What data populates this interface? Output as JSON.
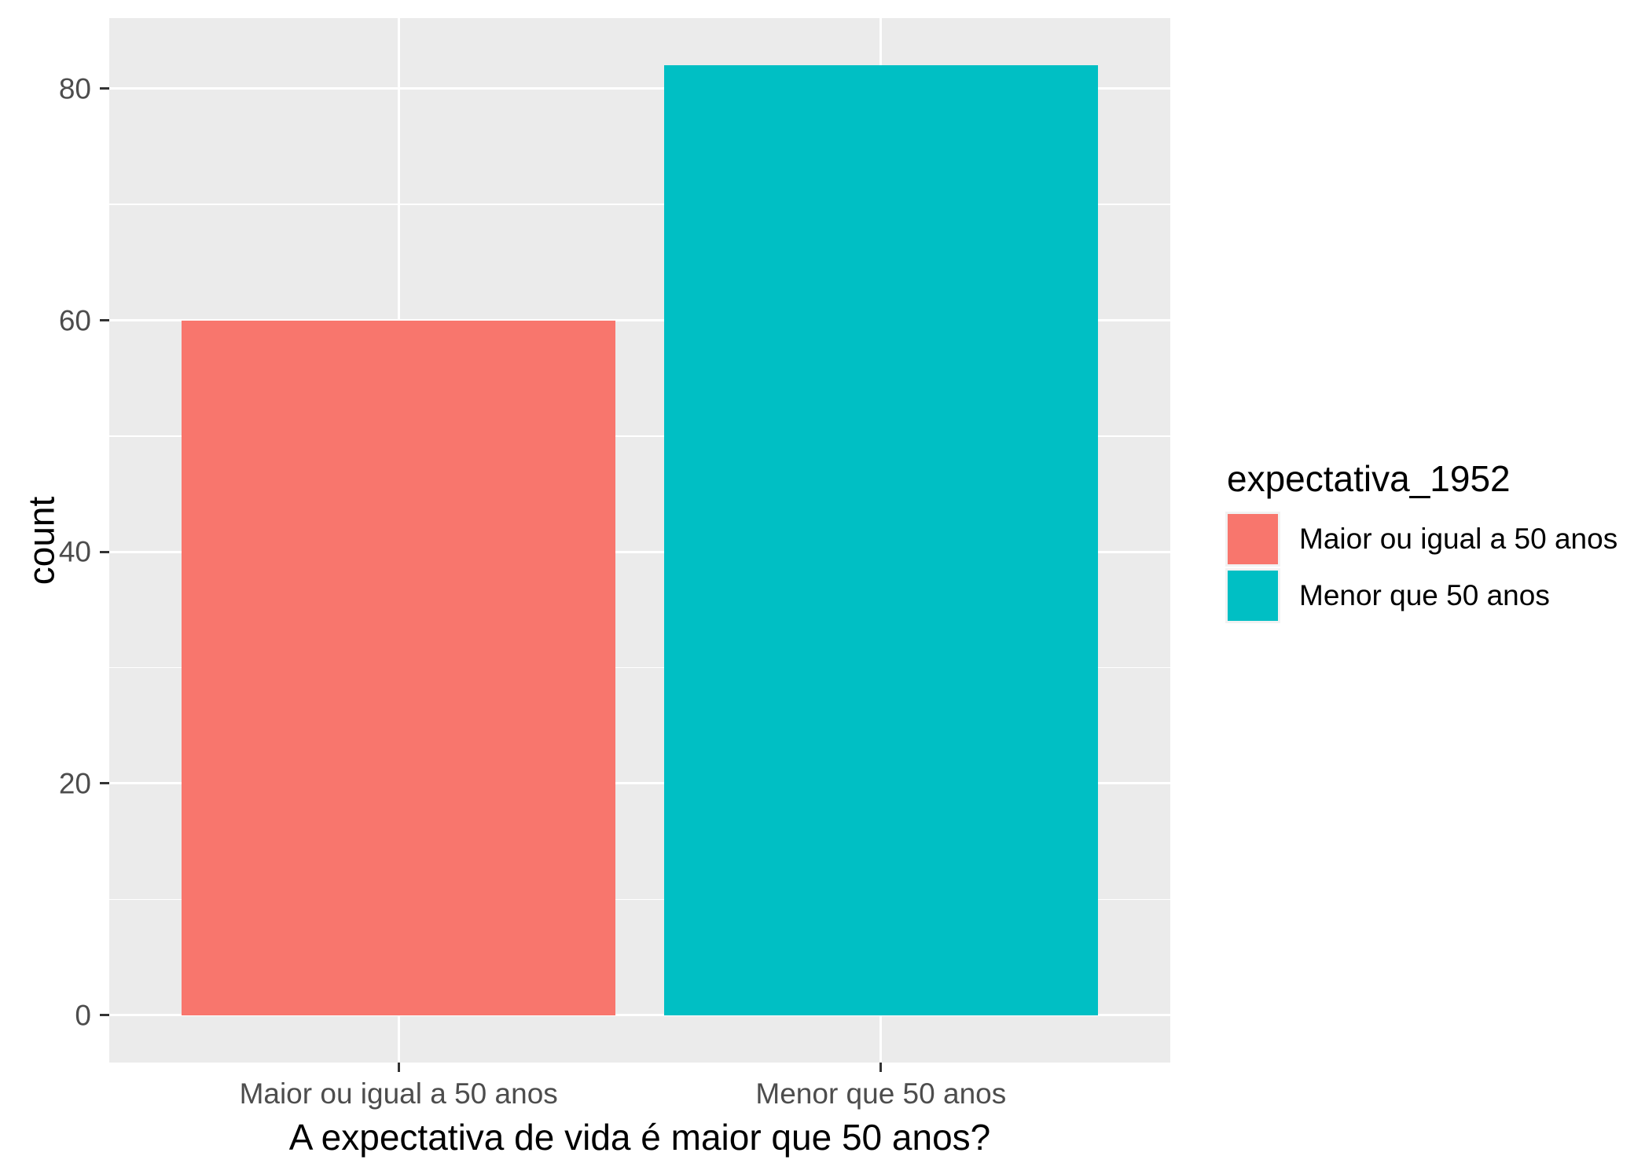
{
  "chart_data": {
    "type": "bar",
    "title": "",
    "xlabel": "A expectativa de vida é maior que 50 anos?",
    "ylabel": "count",
    "categories": [
      "Maior ou igual a 50 anos",
      "Menor que 50 anos"
    ],
    "values": [
      60,
      82
    ],
    "colors": [
      "#F8766D",
      "#00BFC4"
    ],
    "yticks": [
      0,
      20,
      40,
      60,
      80
    ],
    "yticks_minor": [
      10,
      30,
      50,
      70
    ],
    "ylim": [
      0,
      82
    ],
    "ylim_expanded": [
      -4.1,
      86.1
    ],
    "grid": "on",
    "legend": {
      "position": "right",
      "title": "expectativa_1952",
      "entries": [
        {
          "label": "Maior ou igual a 50 anos",
          "color": "#F8766D"
        },
        {
          "label": "Menor que 50 anos",
          "color": "#00BFC4"
        }
      ]
    },
    "style": {
      "panel_bg": "#EBEBEB",
      "grid_color": "#FFFFFF",
      "tick_label_color": "#4D4D4D",
      "tick_mark_color": "#333333",
      "axis_title_color": "#000000",
      "legend_key_bg": "#F2F2F2"
    }
  }
}
